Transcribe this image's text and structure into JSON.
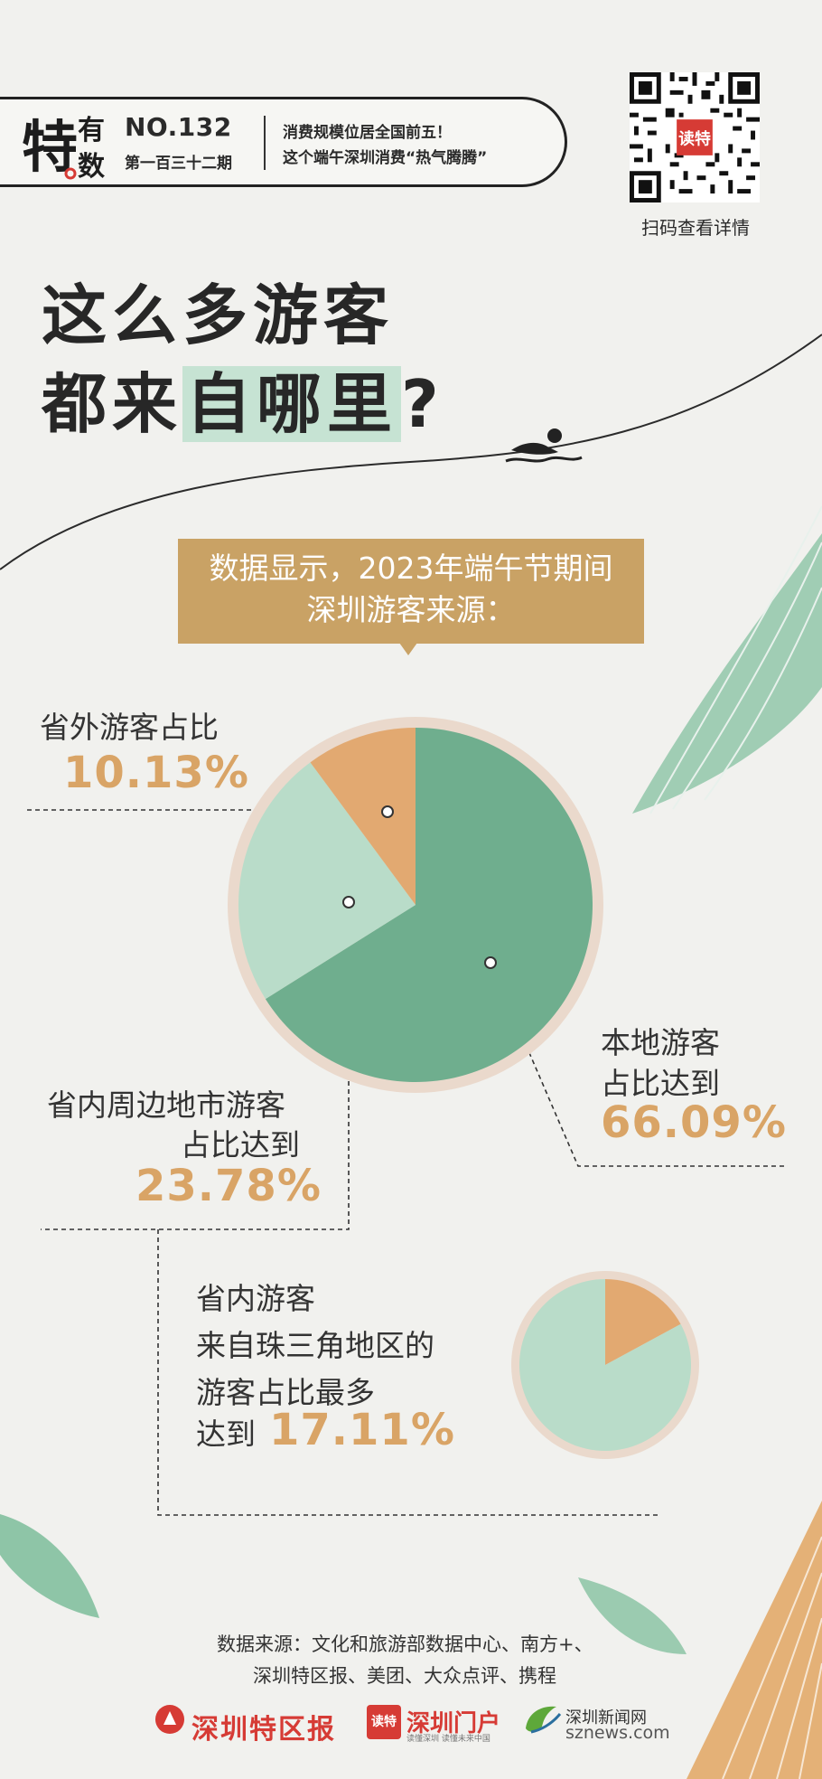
{
  "header": {
    "issue_no": "NO.132",
    "issue_cn": "第一百三十二期",
    "headline_line1": "消费规模位居全国前五！",
    "headline_line2": "这个端午深圳消费“热气腾腾”",
    "logo_text": "特有数"
  },
  "qr": {
    "caption": "扫码查看详情",
    "badge": "读特"
  },
  "title": {
    "line1": "这么多游客",
    "line2_a": "都来",
    "line2_b": "自哪里",
    "line2_c": "?"
  },
  "callout": {
    "line1": "数据显示，2023年端午节期间",
    "line2": "深圳游客来源："
  },
  "labels": {
    "outside_label": "省外游客占比",
    "outside_pct": "10.13%",
    "nearby_label_1": "省内周边地市游客",
    "nearby_label_2": "占比达到",
    "nearby_pct": "23.78%",
    "local_label_1": "本地游客",
    "local_label_2": "占比达到",
    "local_pct": "66.09%",
    "prd_line1": "省内游客",
    "prd_line2": "来自珠三角地区的",
    "prd_line3": "游客占比最多",
    "prd_line4": "达到",
    "prd_pct": "17.11%"
  },
  "footer": {
    "source_line1": "数据来源：文化和旅游部数据中心、南方+、",
    "source_line2": "深圳特区报、美团、大众点评、携程",
    "brand1": "深圳特区报",
    "brand2_badge": "读特",
    "brand2": "深圳门户",
    "brand2_sub": "读懂深圳 读懂未来中国",
    "brand3": "深圳新闻网",
    "brand3_sub": "sznews.com"
  },
  "colors": {
    "local": "#6fae8e",
    "nearby": "#b9dcc9",
    "outside": "#e2a971",
    "rim": "#ead9cc",
    "accent": "#d9a466"
  },
  "chart_data": [
    {
      "type": "pie",
      "title": "深圳游客来源",
      "slices": [
        {
          "name": "本地游客",
          "value": 66.09
        },
        {
          "name": "省内周边地市游客",
          "value": 23.78
        },
        {
          "name": "省外游客",
          "value": 10.13
        }
      ]
    },
    {
      "type": "pie",
      "title": "省内游客来自珠三角地区的游客占比",
      "slices": [
        {
          "name": "珠三角地区",
          "value": 17.11
        },
        {
          "name": "其他",
          "value": 82.89
        }
      ]
    }
  ]
}
